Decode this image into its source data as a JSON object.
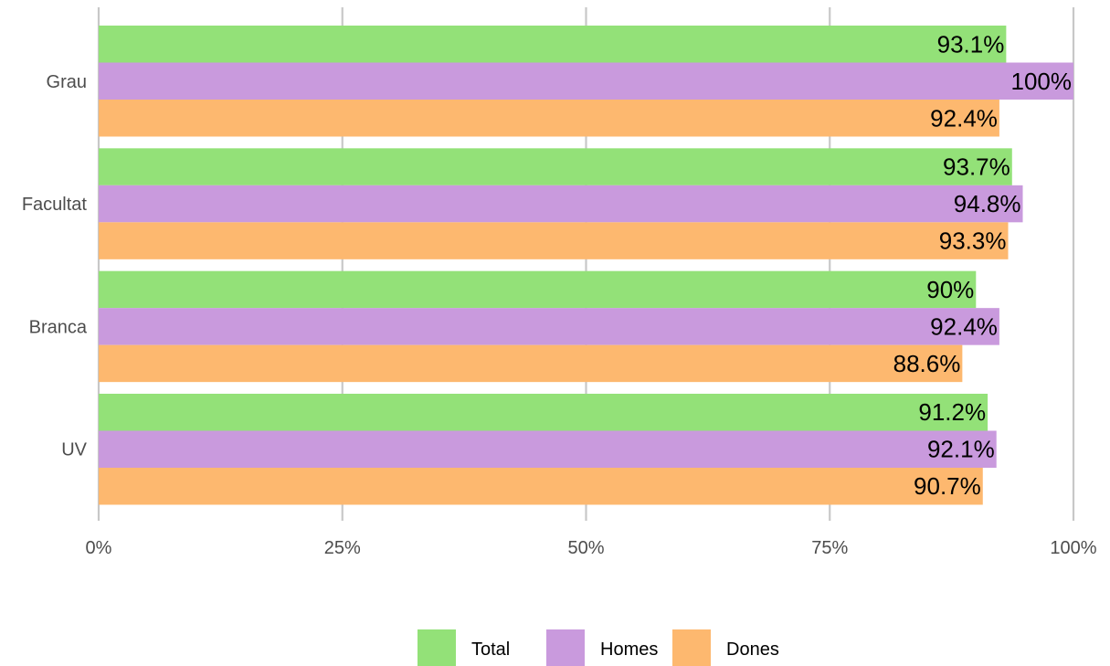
{
  "chart_data": {
    "type": "bar",
    "orientation": "horizontal",
    "categories": [
      "Grau",
      "Facultat",
      "Branca",
      "UV"
    ],
    "series": [
      {
        "name": "Total",
        "color": "#93e178",
        "values": [
          93.1,
          93.7,
          90.0,
          91.2
        ],
        "labels": [
          "93.1%",
          "93.7%",
          "90%",
          "91.2%"
        ]
      },
      {
        "name": "Homes",
        "color": "#c99add",
        "values": [
          100,
          94.8,
          92.4,
          92.1
        ],
        "labels": [
          "100%",
          "94.8%",
          "92.4%",
          "92.1%"
        ]
      },
      {
        "name": "Dones",
        "color": "#fdb86f",
        "values": [
          92.4,
          93.3,
          88.6,
          90.7
        ],
        "labels": [
          "92.4%",
          "93.3%",
          "88.6%",
          "90.7%"
        ]
      }
    ],
    "xlim": [
      0,
      100
    ],
    "xticks": [
      0,
      25,
      50,
      75,
      100
    ],
    "xtick_labels": [
      "0%",
      "25%",
      "50%",
      "75%",
      "100%"
    ],
    "title": "",
    "xlabel": "",
    "ylabel": "",
    "grid": "vertical-major",
    "gridline_color": "#c8c8c8",
    "legend_position": "bottom"
  }
}
